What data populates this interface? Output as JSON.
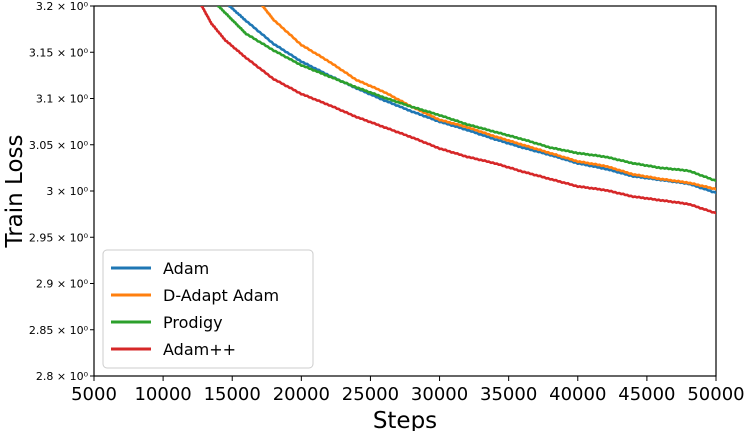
{
  "chart_data": {
    "type": "line",
    "xlabel": "Steps",
    "ylabel": "Train Loss",
    "xlim": [
      5000,
      50000
    ],
    "ylim": [
      2.8,
      3.2
    ],
    "x_ticks": [
      5000,
      10000,
      15000,
      20000,
      25000,
      30000,
      35000,
      40000,
      45000,
      50000
    ],
    "y_ticks": [
      {
        "value": 2.8,
        "label": "2.8 × 10⁰"
      },
      {
        "value": 2.85,
        "label": "2.85 × 10⁰"
      },
      {
        "value": 2.9,
        "label": "2.9 × 10⁰"
      },
      {
        "value": 2.95,
        "label": "2.95 × 10⁰"
      },
      {
        "value": 3.0,
        "label": "3 × 10⁰"
      },
      {
        "value": 3.05,
        "label": "3.05 × 10⁰"
      },
      {
        "value": 3.1,
        "label": "3.1 × 10⁰"
      },
      {
        "value": 3.15,
        "label": "3.15 × 10⁰"
      },
      {
        "value": 3.2,
        "label": "3.2 × 10⁰"
      }
    ],
    "legend_position": "bottom-left",
    "series": [
      {
        "name": "Adam",
        "color": "#1f77b4",
        "x": [
          14800,
          16000,
          18000,
          20000,
          22000,
          24000,
          26000,
          28000,
          30000,
          32000,
          34000,
          36000,
          38000,
          40000,
          42000,
          44000,
          46000,
          48000,
          50000
        ],
        "y": [
          3.2,
          3.184,
          3.159,
          3.14,
          3.125,
          3.111,
          3.098,
          3.086,
          3.075,
          3.066,
          3.056,
          3.047,
          3.039,
          3.03,
          3.024,
          3.016,
          3.012,
          3.008,
          2.998
        ]
      },
      {
        "name": "D-Adapt Adam",
        "color": "#ff7f0e",
        "x": [
          17200,
          18000,
          20000,
          22000,
          24000,
          26000,
          28000,
          30000,
          32000,
          34000,
          36000,
          38000,
          40000,
          42000,
          44000,
          46000,
          48000,
          50000
        ],
        "y": [
          3.2,
          3.185,
          3.158,
          3.14,
          3.12,
          3.107,
          3.091,
          3.077,
          3.069,
          3.059,
          3.05,
          3.041,
          3.032,
          3.027,
          3.018,
          3.013,
          3.009,
          3.002
        ]
      },
      {
        "name": "Prodigy",
        "color": "#2ca02c",
        "x": [
          14000,
          15000,
          16000,
          18000,
          20000,
          22000,
          24000,
          26000,
          28000,
          30000,
          32000,
          34000,
          36000,
          38000,
          40000,
          42000,
          44000,
          46000,
          48000,
          50000
        ],
        "y": [
          3.2,
          3.185,
          3.17,
          3.152,
          3.136,
          3.124,
          3.112,
          3.101,
          3.091,
          3.082,
          3.072,
          3.064,
          3.056,
          3.047,
          3.041,
          3.037,
          3.03,
          3.025,
          3.022,
          3.011
        ]
      },
      {
        "name": "Adam++",
        "color": "#d62728",
        "x": [
          12800,
          13500,
          14500,
          16000,
          18000,
          20000,
          22000,
          24000,
          26000,
          28000,
          30000,
          32000,
          34000,
          36000,
          38000,
          40000,
          42000,
          44000,
          46000,
          48000,
          50000
        ],
        "y": [
          3.2,
          3.181,
          3.163,
          3.144,
          3.121,
          3.105,
          3.093,
          3.08,
          3.069,
          3.058,
          3.046,
          3.037,
          3.03,
          3.021,
          3.013,
          3.005,
          3.001,
          2.994,
          2.99,
          2.986,
          2.976
        ]
      }
    ]
  }
}
